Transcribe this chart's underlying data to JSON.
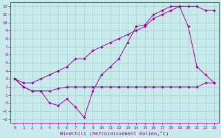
{
  "bg_color": "#c8eaea",
  "grid_color": "#aacccc",
  "line_color": "#990099",
  "xlabel": "Windchill (Refroidissement éolien,°C)",
  "xlim": [
    -0.5,
    23.5
  ],
  "ylim": [
    -2.5,
    12.5
  ],
  "xticks": [
    0,
    1,
    2,
    3,
    4,
    5,
    6,
    7,
    8,
    9,
    10,
    11,
    12,
    13,
    14,
    15,
    16,
    17,
    18,
    19,
    20,
    21,
    22,
    23
  ],
  "yticks": [
    -2,
    -1,
    0,
    1,
    2,
    3,
    4,
    5,
    6,
    7,
    8,
    9,
    10,
    11,
    12
  ],
  "line1_x": [
    0,
    1,
    2,
    3,
    4,
    5,
    6,
    7,
    8,
    9,
    10,
    11,
    12,
    13,
    14,
    15,
    16,
    17,
    18,
    19,
    20,
    21,
    22,
    23
  ],
  "line1_y": [
    3,
    2,
    1.5,
    1.5,
    0,
    -0.3,
    0.5,
    -0.5,
    -1.8,
    1.5,
    3.5,
    4.5,
    5.5,
    7.5,
    9.5,
    9.7,
    11.0,
    11.5,
    12.0,
    12.0,
    9.5,
    4.5,
    3.5,
    2.5
  ],
  "line2_x": [
    0,
    1,
    2,
    3,
    4,
    5,
    6,
    7,
    8,
    9,
    10,
    11,
    12,
    13,
    14,
    15,
    16,
    17,
    18,
    19,
    20,
    21,
    22,
    23
  ],
  "line2_y": [
    3,
    2,
    1.5,
    1.5,
    1.5,
    1.8,
    2.0,
    2.0,
    2.0,
    2.0,
    2.0,
    2.0,
    2.0,
    2.0,
    2.0,
    2.0,
    2.0,
    2.0,
    2.0,
    2.0,
    2.0,
    2.0,
    2.5,
    2.5
  ],
  "line3_x": [
    0,
    1,
    2,
    3,
    4,
    5,
    6,
    7,
    8,
    9,
    10,
    11,
    12,
    13,
    14,
    15,
    16,
    17,
    18,
    19,
    20,
    21,
    22,
    23
  ],
  "line3_y": [
    3,
    2.5,
    2.5,
    3.0,
    3.5,
    4.0,
    4.5,
    5.5,
    5.5,
    6.5,
    7.0,
    7.5,
    8.0,
    8.5,
    9.0,
    9.5,
    10.5,
    11.0,
    11.5,
    12.0,
    12.0,
    12.0,
    11.5,
    11.5
  ]
}
